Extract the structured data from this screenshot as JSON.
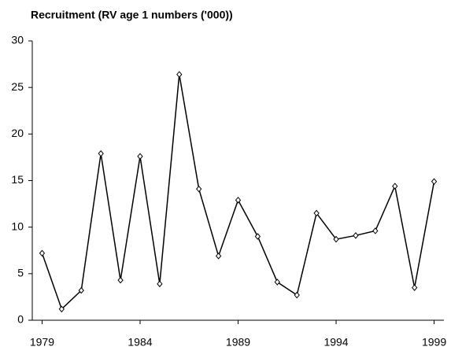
{
  "chart_data": {
    "type": "line",
    "title": "Recruitment (RV age 1 numbers ('000))",
    "x": [
      1979,
      1980,
      1981,
      1982,
      1983,
      1984,
      1985,
      1986,
      1987,
      1988,
      1989,
      1990,
      1991,
      1992,
      1993,
      1994,
      1995,
      1996,
      1997,
      1998,
      1999
    ],
    "series": [
      {
        "name": "Recruitment",
        "color": "#000000",
        "values": [
          7.2,
          1.2,
          3.2,
          17.9,
          4.3,
          17.6,
          3.9,
          26.4,
          14.1,
          6.9,
          12.9,
          9.0,
          4.1,
          2.7,
          11.5,
          8.7,
          9.1,
          9.6,
          14.4,
          3.5,
          14.9
        ]
      }
    ],
    "xlim": [
      1978.5,
      1999.5
    ],
    "xticks": [
      1979,
      1984,
      1989,
      1994,
      1999
    ],
    "ylim": [
      0,
      30
    ],
    "yticks": [
      0,
      5,
      10,
      15,
      20,
      25,
      30
    ],
    "grid": false
  }
}
